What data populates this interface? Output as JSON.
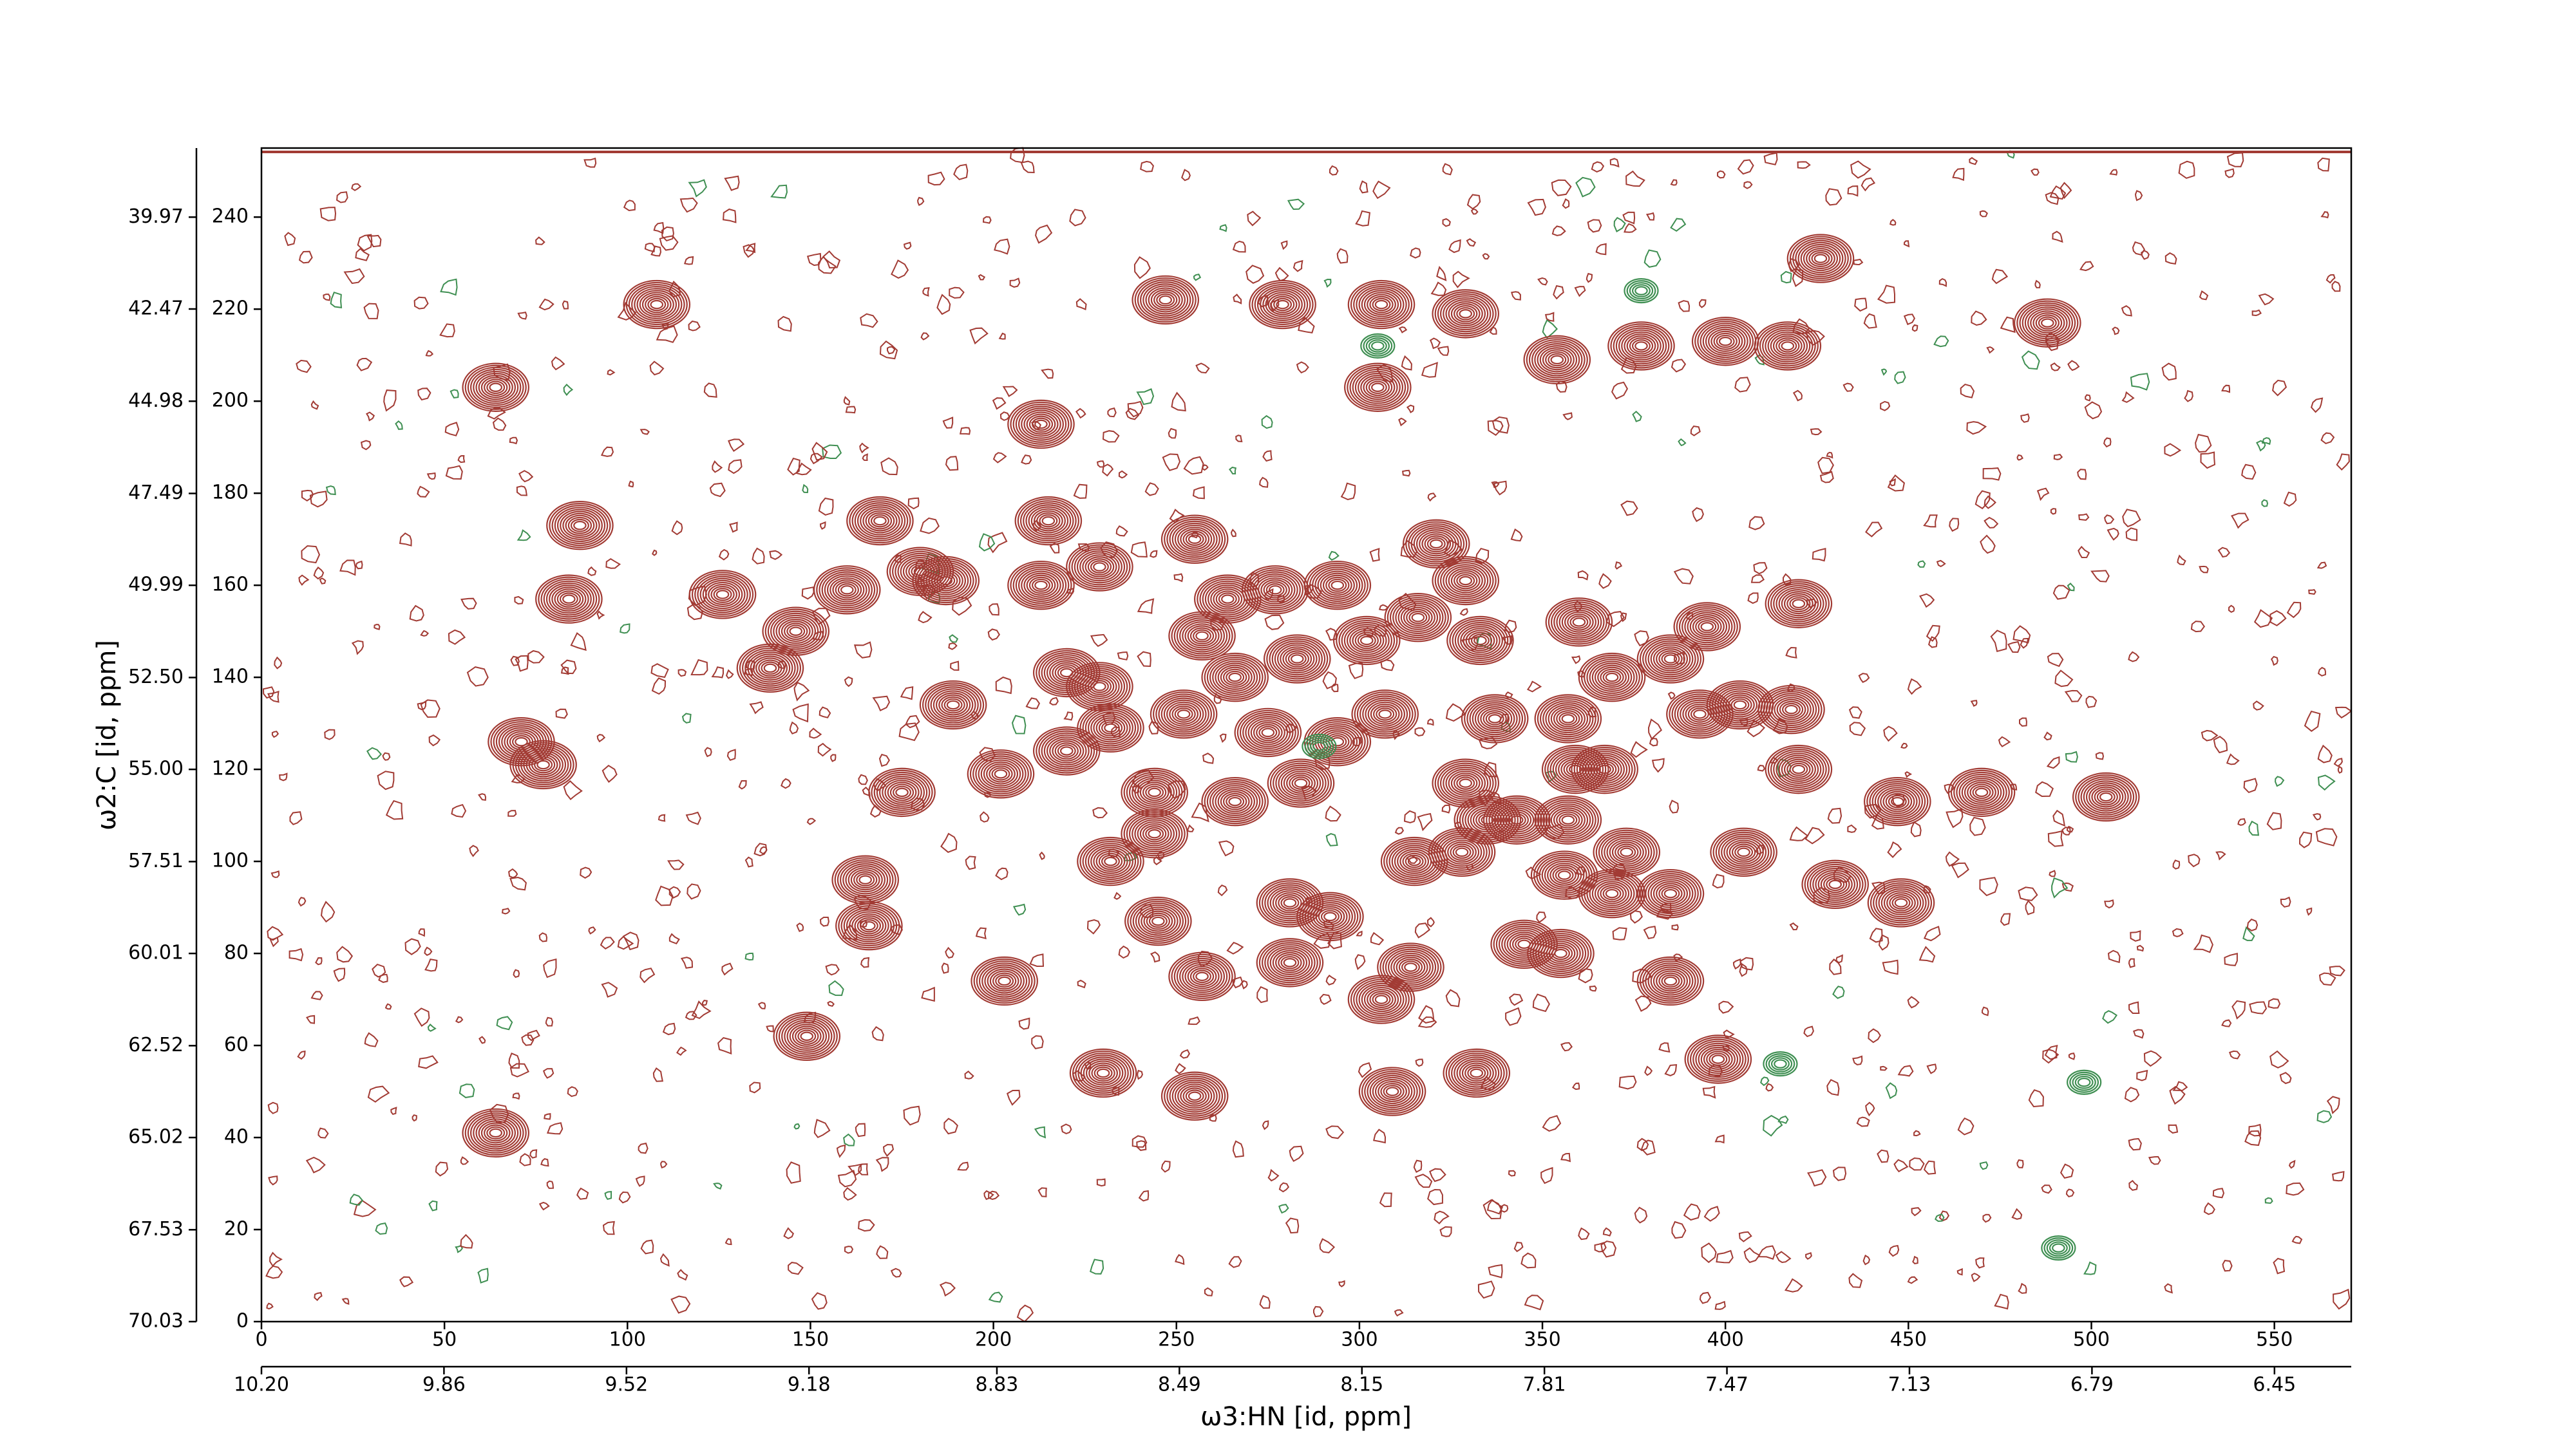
{
  "chart_data": {
    "type": "contour",
    "x_label": "ω3:HN [id, ppm]",
    "y_label": "ω2:C [id, ppm]",
    "xlim": [
      0,
      571
    ],
    "ylim": [
      0,
      255
    ],
    "xticks": [
      0,
      50,
      100,
      150,
      200,
      250,
      300,
      350,
      400,
      450,
      500,
      550
    ],
    "yticks": [
      0,
      20,
      40,
      60,
      80,
      100,
      120,
      140,
      160,
      180,
      200,
      220,
      240
    ],
    "x2lim": [
      10.2,
      6.307
    ],
    "x2ticks": [
      {
        "value": 10.2,
        "label": "10.20"
      },
      9.86,
      9.52,
      9.18,
      8.83,
      8.49,
      8.15,
      7.81,
      7.47,
      7.13,
      6.79,
      6.45
    ],
    "y2lim": [
      70.03,
      38.09
    ],
    "y2ticks": [
      70.03,
      67.53,
      65.02,
      62.52,
      60.01,
      57.51,
      {
        "value": 55,
        "label": "55.00"
      },
      {
        "value": 52.5,
        "label": "52.50"
      },
      49.99,
      47.49,
      44.98,
      42.47,
      39.97
    ],
    "series": [
      {
        "color": "#a23b34",
        "x": [
          64,
          108,
          87,
          84,
          126,
          146,
          139,
          160,
          169,
          180,
          187,
          189,
          165,
          166,
          175,
          149,
          64,
          71,
          77,
          213,
          215,
          213,
          229,
          220,
          229,
          232,
          220,
          202,
          244,
          232,
          244,
          245,
          257,
          230,
          255,
          255,
          264,
          257,
          266,
          252,
          277,
          283,
          275,
          266,
          284,
          294,
          302,
          307,
          294,
          281,
          292,
          281,
          306,
          309,
          314,
          315,
          328,
          321,
          316,
          329,
          333,
          337,
          329,
          335,
          345,
          355,
          332,
          343,
          357,
          357,
          359,
          367,
          360,
          369,
          385,
          395,
          393,
          404,
          418,
          420,
          420,
          405,
          385,
          369,
          356,
          373,
          385,
          398,
          430,
          447,
          470,
          504,
          448,
          426,
          488,
          247,
          279,
          306,
          329,
          354,
          377,
          400,
          417,
          305,
          203
        ],
        "y": [
          203,
          221,
          173,
          157,
          158,
          150,
          142,
          159,
          174,
          163,
          161,
          134,
          96,
          86,
          115,
          62,
          41,
          126,
          121,
          195,
          174,
          160,
          164,
          141,
          138,
          129,
          124,
          119,
          115,
          100,
          106,
          87,
          75,
          54,
          49,
          170,
          157,
          149,
          140,
          132,
          159,
          144,
          128,
          113,
          117,
          160,
          148,
          132,
          126,
          91,
          88,
          78,
          70,
          50,
          77,
          100,
          102,
          169,
          153,
          161,
          148,
          131,
          117,
          109,
          82,
          80,
          54,
          109,
          109,
          131,
          120,
          120,
          152,
          140,
          144,
          151,
          132,
          134,
          133,
          156,
          120,
          102,
          93,
          93,
          97,
          102,
          74,
          57,
          95,
          113,
          115,
          114,
          91,
          231,
          217,
          222,
          221,
          221,
          219,
          209,
          212,
          213,
          212,
          203,
          74
        ]
      },
      {
        "color": "#3f8f52",
        "x": [
          498,
          491,
          377,
          305,
          289,
          415
        ],
        "y": [
          52,
          16,
          224,
          212,
          125,
          56
        ]
      }
    ]
  }
}
